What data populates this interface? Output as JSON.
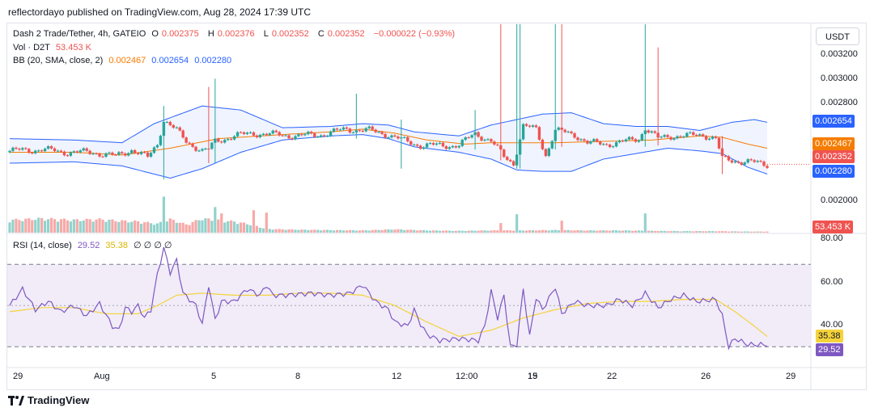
{
  "header": {
    "published": "reflectordayo published on TradingView.com, Aug 28, 2024 17:39 UTC"
  },
  "legend": {
    "symbol": "Dash 2 Trade/Tether, 4h, GATEIO",
    "o_label": "O",
    "o_value": "0.002375",
    "h_label": "H",
    "h_value": "0.002376",
    "l_label": "L",
    "l_value": "0.002352",
    "c_label": "C",
    "c_value": "0.002352",
    "change": "−0.000022 (−0.93%)",
    "vol_label": "Vol · D2T",
    "vol_value": "53.453 K",
    "bb_label": "BB (20, SMA, close, 2)",
    "bb_basis": "0.002467",
    "bb_upper": "0.002654",
    "bb_lower": "0.002280",
    "rsi_label": "RSI (14, close)",
    "rsi_value": "29.52",
    "rsi_ma": "35.38",
    "rsi_extra": "∅ ∅ ∅ ∅"
  },
  "currency_button": "USDT",
  "price_axis_ticks": [
    "0.003200",
    "0.003000",
    "0.002800",
    "0.002000"
  ],
  "price_badges": {
    "upper": "0.002654",
    "basis": "0.002467",
    "close": "0.002352",
    "lower": "0.002280",
    "volume": "53.453 K"
  },
  "rsi_axis_ticks": [
    "80.00",
    "60.00",
    "40.00"
  ],
  "rsi_badges": {
    "ma": "35.38",
    "rsi": "29.52"
  },
  "time_axis_ticks": [
    "29",
    "Aug",
    "5",
    "8",
    "12",
    "12:00",
    "15",
    "19",
    "22",
    "26",
    "29"
  ],
  "footer": {
    "brand": "TradingView"
  },
  "colors": {
    "up": "#26a69a",
    "down": "#ef5350",
    "bb_band": "#2962ff",
    "bb_basis": "#f57c00",
    "rsi_line": "#7e57c2",
    "rsi_ma": "#f5d33b",
    "rsi_fill": "#ede7f6"
  },
  "chart_data": {
    "type": "candlestick",
    "symbol": "Dash 2 Trade/Tether",
    "timeframe": "4h",
    "x_ticks": [
      "29",
      "Aug",
      "5",
      "8",
      "12",
      "12:00",
      "15",
      "19",
      "22",
      "26",
      "29"
    ],
    "price_range": [
      0.00185,
      0.00338
    ],
    "price_ticks": [
      0.0032,
      0.003,
      0.0028,
      0.002
    ],
    "last": {
      "open": 0.002375,
      "high": 0.002376,
      "low": 0.002352,
      "close": 0.002352
    },
    "bollinger": {
      "basis": 0.002467,
      "upper": 0.002654,
      "lower": 0.00228
    },
    "anchors": {
      "close": [
        [
          0,
          0.00245
        ],
        [
          10,
          0.00246
        ],
        [
          18,
          0.00244
        ],
        [
          26,
          0.00244
        ],
        [
          33,
          0.00241
        ],
        [
          38,
          0.00246
        ],
        [
          43,
          0.0024
        ],
        [
          46,
          0.0025
        ],
        [
          48,
          0.00268
        ],
        [
          52,
          0.0026
        ],
        [
          55,
          0.00252
        ],
        [
          60,
          0.00245
        ],
        [
          62,
          0.00246
        ],
        [
          64,
          0.00252
        ],
        [
          70,
          0.00256
        ],
        [
          76,
          0.00258
        ],
        [
          82,
          0.00257
        ],
        [
          90,
          0.00256
        ],
        [
          97,
          0.00257
        ],
        [
          105,
          0.00261
        ],
        [
          112,
          0.0026
        ],
        [
          118,
          0.00257
        ],
        [
          122,
          0.00253
        ],
        [
          128,
          0.00249
        ],
        [
          134,
          0.00249
        ],
        [
          140,
          0.00249
        ],
        [
          145,
          0.00258
        ],
        [
          150,
          0.00252
        ],
        [
          154,
          0.00241
        ],
        [
          157,
          0.00236
        ],
        [
          160,
          0.00263
        ],
        [
          164,
          0.00261
        ],
        [
          167,
          0.00242
        ],
        [
          170,
          0.0026
        ],
        [
          176,
          0.00257
        ],
        [
          180,
          0.00251
        ],
        [
          186,
          0.0025
        ],
        [
          192,
          0.00252
        ],
        [
          196,
          0.00254
        ],
        [
          198,
          0.00262
        ],
        [
          202,
          0.00254
        ],
        [
          206,
          0.00256
        ],
        [
          212,
          0.00256
        ],
        [
          216,
          0.00257
        ],
        [
          220,
          0.00254
        ],
        [
          222,
          0.00239
        ],
        [
          225,
          0.00238
        ],
        [
          230,
          0.00237
        ],
        [
          236,
          0.00235
        ]
      ],
      "bb_upper": [
        [
          0,
          0.00254
        ],
        [
          20,
          0.00253
        ],
        [
          35,
          0.00251
        ],
        [
          45,
          0.00265
        ],
        [
          60,
          0.00278
        ],
        [
          72,
          0.00275
        ],
        [
          85,
          0.00262
        ],
        [
          100,
          0.00263
        ],
        [
          110,
          0.00265
        ],
        [
          118,
          0.00264
        ],
        [
          126,
          0.00259
        ],
        [
          140,
          0.00256
        ],
        [
          150,
          0.00264
        ],
        [
          158,
          0.00268
        ],
        [
          166,
          0.00272
        ],
        [
          175,
          0.00273
        ],
        [
          185,
          0.00265
        ],
        [
          195,
          0.00263
        ],
        [
          205,
          0.00263
        ],
        [
          215,
          0.0026
        ],
        [
          225,
          0.00266
        ],
        [
          232,
          0.00268
        ],
        [
          236,
          0.00266
        ]
      ],
      "bb_basis": [
        [
          0,
          0.00244
        ],
        [
          20,
          0.00244
        ],
        [
          35,
          0.00242
        ],
        [
          50,
          0.00247
        ],
        [
          65,
          0.00254
        ],
        [
          85,
          0.00257
        ],
        [
          100,
          0.00259
        ],
        [
          110,
          0.00261
        ],
        [
          120,
          0.00258
        ],
        [
          130,
          0.00253
        ],
        [
          142,
          0.0025
        ],
        [
          150,
          0.00251
        ],
        [
          160,
          0.00251
        ],
        [
          170,
          0.00251
        ],
        [
          185,
          0.00252
        ],
        [
          200,
          0.00253
        ],
        [
          215,
          0.00256
        ],
        [
          222,
          0.00255
        ],
        [
          230,
          0.0025
        ],
        [
          236,
          0.00247
        ]
      ],
      "bb_lower": [
        [
          0,
          0.00236
        ],
        [
          20,
          0.00237
        ],
        [
          35,
          0.00234
        ],
        [
          50,
          0.00225
        ],
        [
          60,
          0.00232
        ],
        [
          72,
          0.00244
        ],
        [
          85,
          0.00253
        ],
        [
          100,
          0.00256
        ],
        [
          110,
          0.00257
        ],
        [
          118,
          0.00254
        ],
        [
          126,
          0.00248
        ],
        [
          140,
          0.00244
        ],
        [
          150,
          0.00239
        ],
        [
          158,
          0.00231
        ],
        [
          166,
          0.0023
        ],
        [
          175,
          0.0023
        ],
        [
          185,
          0.00239
        ],
        [
          195,
          0.00243
        ],
        [
          205,
          0.00247
        ],
        [
          215,
          0.00245
        ],
        [
          222,
          0.00243
        ],
        [
          230,
          0.00233
        ],
        [
          236,
          0.00228
        ]
      ],
      "volume": [
        [
          0,
          34
        ],
        [
          10,
          38
        ],
        [
          20,
          34
        ],
        [
          28,
          36
        ],
        [
          34,
          32
        ],
        [
          40,
          30
        ],
        [
          46,
          24
        ],
        [
          50,
          36
        ],
        [
          55,
          22
        ],
        [
          60,
          38
        ],
        [
          64,
          34
        ],
        [
          70,
          30
        ],
        [
          75,
          22
        ],
        [
          80,
          10
        ],
        [
          90,
          8
        ],
        [
          100,
          7
        ],
        [
          110,
          6
        ],
        [
          120,
          9
        ],
        [
          130,
          6
        ],
        [
          140,
          5
        ],
        [
          150,
          6
        ],
        [
          160,
          6
        ],
        [
          170,
          7
        ],
        [
          180,
          6
        ],
        [
          190,
          6
        ],
        [
          200,
          5
        ],
        [
          210,
          4
        ],
        [
          220,
          4
        ],
        [
          230,
          3
        ],
        [
          236,
          3
        ]
      ]
    },
    "wicks": [
      {
        "i": 48,
        "low": 0.00224,
        "high": 0.00278
      },
      {
        "i": 62,
        "low": 0.00236,
        "high": 0.00292
      },
      {
        "i": 64,
        "low": 0.00236,
        "high": 0.00298
      },
      {
        "i": 108,
        "low": 0.00254,
        "high": 0.00287
      },
      {
        "i": 122,
        "low": 0.00232,
        "high": 0.00268
      },
      {
        "i": 145,
        "low": 0.00246,
        "high": 0.00275
      },
      {
        "i": 153,
        "low": 0.00238,
        "high": 0.00338
      },
      {
        "i": 158,
        "low": 0.00232,
        "high": 0.00338
      },
      {
        "i": 159,
        "low": 0.00232,
        "high": 0.00338
      },
      {
        "i": 170,
        "low": 0.00246,
        "high": 0.00338
      },
      {
        "i": 172,
        "low": 0.00248,
        "high": 0.00338
      },
      {
        "i": 198,
        "low": 0.00248,
        "high": 0.00338
      },
      {
        "i": 202,
        "low": 0.00249,
        "high": 0.00321
      },
      {
        "i": 222,
        "low": 0.00228,
        "high": 0.00256
      }
    ],
    "volume_spikes": [
      {
        "i": 48,
        "v": 90
      },
      {
        "i": 64,
        "v": 64
      },
      {
        "i": 66,
        "v": 48
      },
      {
        "i": 76,
        "v": 56
      },
      {
        "i": 80,
        "v": 50
      },
      {
        "i": 153,
        "v": 24
      },
      {
        "i": 158,
        "v": 46
      },
      {
        "i": 172,
        "v": 30
      },
      {
        "i": 198,
        "v": 48
      }
    ],
    "rsi": {
      "range": [
        25,
        85
      ],
      "overbought": 70,
      "middle": 50,
      "oversold": 30,
      "value": 29.52,
      "ma": 35.38,
      "anchors": [
        [
          0,
          50
        ],
        [
          4,
          58
        ],
        [
          8,
          48
        ],
        [
          12,
          52
        ],
        [
          16,
          47
        ],
        [
          20,
          50
        ],
        [
          24,
          45
        ],
        [
          28,
          51
        ],
        [
          32,
          40
        ],
        [
          34,
          38
        ],
        [
          36,
          49
        ],
        [
          38,
          47
        ],
        [
          40,
          50
        ],
        [
          42,
          44
        ],
        [
          44,
          48
        ],
        [
          46,
          65
        ],
        [
          48,
          78
        ],
        [
          50,
          66
        ],
        [
          52,
          72
        ],
        [
          54,
          56
        ],
        [
          58,
          50
        ],
        [
          60,
          41
        ],
        [
          62,
          60
        ],
        [
          64,
          43
        ],
        [
          66,
          52
        ],
        [
          70,
          52
        ],
        [
          74,
          58
        ],
        [
          78,
          55
        ],
        [
          80,
          60
        ],
        [
          82,
          55
        ],
        [
          86,
          55
        ],
        [
          94,
          56
        ],
        [
          100,
          55
        ],
        [
          106,
          56
        ],
        [
          110,
          60
        ],
        [
          114,
          52
        ],
        [
          118,
          48
        ],
        [
          120,
          42
        ],
        [
          124,
          40
        ],
        [
          126,
          48
        ],
        [
          128,
          41
        ],
        [
          130,
          36
        ],
        [
          134,
          33
        ],
        [
          140,
          34
        ],
        [
          146,
          33
        ],
        [
          148,
          40
        ],
        [
          150,
          57
        ],
        [
          152,
          44
        ],
        [
          154,
          55
        ],
        [
          156,
          30
        ],
        [
          158,
          31
        ],
        [
          160,
          58
        ],
        [
          162,
          35
        ],
        [
          164,
          54
        ],
        [
          166,
          48
        ],
        [
          170,
          59
        ],
        [
          172,
          46
        ],
        [
          176,
          52
        ],
        [
          180,
          50
        ],
        [
          186,
          50
        ],
        [
          190,
          53
        ],
        [
          194,
          50
        ],
        [
          198,
          56
        ],
        [
          202,
          49
        ],
        [
          206,
          53
        ],
        [
          210,
          55
        ],
        [
          214,
          52
        ],
        [
          220,
          53
        ],
        [
          222,
          45
        ],
        [
          224,
          30
        ],
        [
          226,
          34
        ],
        [
          230,
          31
        ],
        [
          236,
          31
        ]
      ],
      "ma_anchors": [
        [
          0,
          47
        ],
        [
          10,
          49
        ],
        [
          20,
          49
        ],
        [
          30,
          46
        ],
        [
          40,
          46
        ],
        [
          46,
          50
        ],
        [
          52,
          55
        ],
        [
          60,
          56
        ],
        [
          70,
          55
        ],
        [
          80,
          55
        ],
        [
          90,
          56
        ],
        [
          100,
          56
        ],
        [
          110,
          55
        ],
        [
          120,
          50
        ],
        [
          130,
          42
        ],
        [
          140,
          35
        ],
        [
          150,
          38
        ],
        [
          160,
          44
        ],
        [
          170,
          48
        ],
        [
          180,
          51
        ],
        [
          190,
          52
        ],
        [
          200,
          52
        ],
        [
          210,
          53
        ],
        [
          220,
          53
        ],
        [
          226,
          47
        ],
        [
          232,
          40
        ],
        [
          236,
          35
        ]
      ]
    }
  }
}
